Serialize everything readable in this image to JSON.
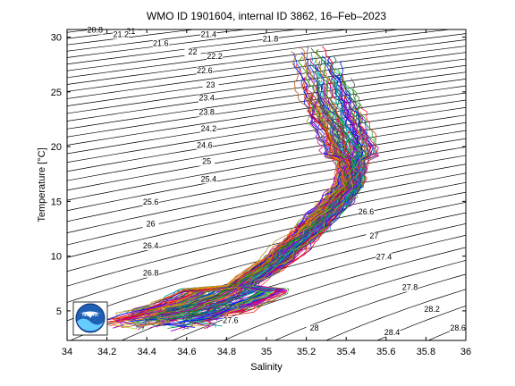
{
  "chart_data": {
    "type": "line",
    "title": "WMO ID 1901604, internal ID 3862, 16–Feb–2023",
    "xlabel": "Salinity",
    "ylabel": "Temperature [°C]",
    "xlim": [
      34,
      36
    ],
    "ylim": [
      2.3,
      30.7
    ],
    "x_ticks": [
      34,
      34.2,
      34.4,
      34.6,
      34.8,
      35,
      35.2,
      35.4,
      35.6,
      35.8,
      36
    ],
    "x_tick_labels": [
      "34",
      "34.2",
      "34.4",
      "34.6",
      "34.8",
      "35",
      "35.2",
      "35.4",
      "35.6",
      "35.8",
      "36"
    ],
    "y_ticks": [
      5,
      10,
      15,
      20,
      25,
      30
    ],
    "y_tick_labels": [
      "5",
      "10",
      "15",
      "20",
      "25",
      "30"
    ],
    "grid": false,
    "logo": "noaa-logo",
    "density_isolines": {
      "sigma_min": 20.6,
      "sigma_max": 28.8,
      "step": 0.2
    },
    "isoline_labels": [
      {
        "text": "20.8",
        "s": 34.14,
        "t": 30.4
      },
      {
        "text": "21",
        "s": 34.32,
        "t": 30.3
      },
      {
        "text": "21.2",
        "s": 34.27,
        "t": 30.0
      },
      {
        "text": "21.4",
        "s": 34.71,
        "t": 30.0
      },
      {
        "text": "21.6",
        "s": 34.47,
        "t": 29.2
      },
      {
        "text": "21.8",
        "s": 35.02,
        "t": 29.6
      },
      {
        "text": "22",
        "s": 34.63,
        "t": 28.4
      },
      {
        "text": "22.2",
        "s": 34.74,
        "t": 28.0
      },
      {
        "text": "22.6",
        "s": 34.69,
        "t": 26.7
      },
      {
        "text": "23",
        "s": 34.72,
        "t": 25.4
      },
      {
        "text": "23.4",
        "s": 34.7,
        "t": 24.2
      },
      {
        "text": "23.8",
        "s": 34.7,
        "t": 22.9
      },
      {
        "text": "24.2",
        "s": 34.71,
        "t": 21.4
      },
      {
        "text": "24.6",
        "s": 34.69,
        "t": 19.9
      },
      {
        "text": "25",
        "s": 34.7,
        "t": 18.4
      },
      {
        "text": "25.4",
        "s": 34.71,
        "t": 16.8
      },
      {
        "text": "25.6",
        "s": 34.42,
        "t": 14.7
      },
      {
        "text": "26",
        "s": 34.42,
        "t": 12.7
      },
      {
        "text": "26.4",
        "s": 34.42,
        "t": 10.7
      },
      {
        "text": "26.6",
        "s": 35.5,
        "t": 13.8
      },
      {
        "text": "26.8",
        "s": 34.42,
        "t": 8.2
      },
      {
        "text": "27",
        "s": 35.54,
        "t": 11.6
      },
      {
        "text": "27.4",
        "s": 35.59,
        "t": 9.7
      },
      {
        "text": "27.6",
        "s": 34.82,
        "t": 3.9
      },
      {
        "text": "27.8",
        "s": 35.72,
        "t": 6.9
      },
      {
        "text": "28",
        "s": 35.24,
        "t": 3.2
      },
      {
        "text": "28.2",
        "s": 35.83,
        "t": 4.9
      },
      {
        "text": "28.4",
        "s": 35.63,
        "t": 2.8
      },
      {
        "text": "28.6",
        "s": 35.96,
        "t": 3.2
      }
    ],
    "profile_envelope": [
      [
        34.55,
        4.0
      ],
      [
        34.7,
        5.2
      ],
      [
        34.82,
        6.5
      ],
      [
        34.9,
        7.7
      ],
      [
        34.98,
        8.6
      ],
      [
        35.06,
        9.6
      ],
      [
        35.12,
        10.8
      ],
      [
        35.2,
        12.0
      ],
      [
        35.28,
        13.6
      ],
      [
        35.36,
        15.0
      ],
      [
        35.42,
        16.5
      ],
      [
        35.43,
        18.0
      ],
      [
        35.42,
        19.8
      ],
      [
        35.38,
        21.5
      ],
      [
        35.35,
        23.0
      ],
      [
        35.32,
        24.5
      ],
      [
        35.3,
        26.0
      ],
      [
        35.27,
        27.5
      ],
      [
        35.25,
        28.8
      ]
    ],
    "series_colors": [
      "#0000ff",
      "#ff0000",
      "#00a000",
      "#00bfbf",
      "#bf00bf",
      "#bfbf00",
      "#404040",
      "#ff8000",
      "#8000ff",
      "#008080"
    ]
  }
}
